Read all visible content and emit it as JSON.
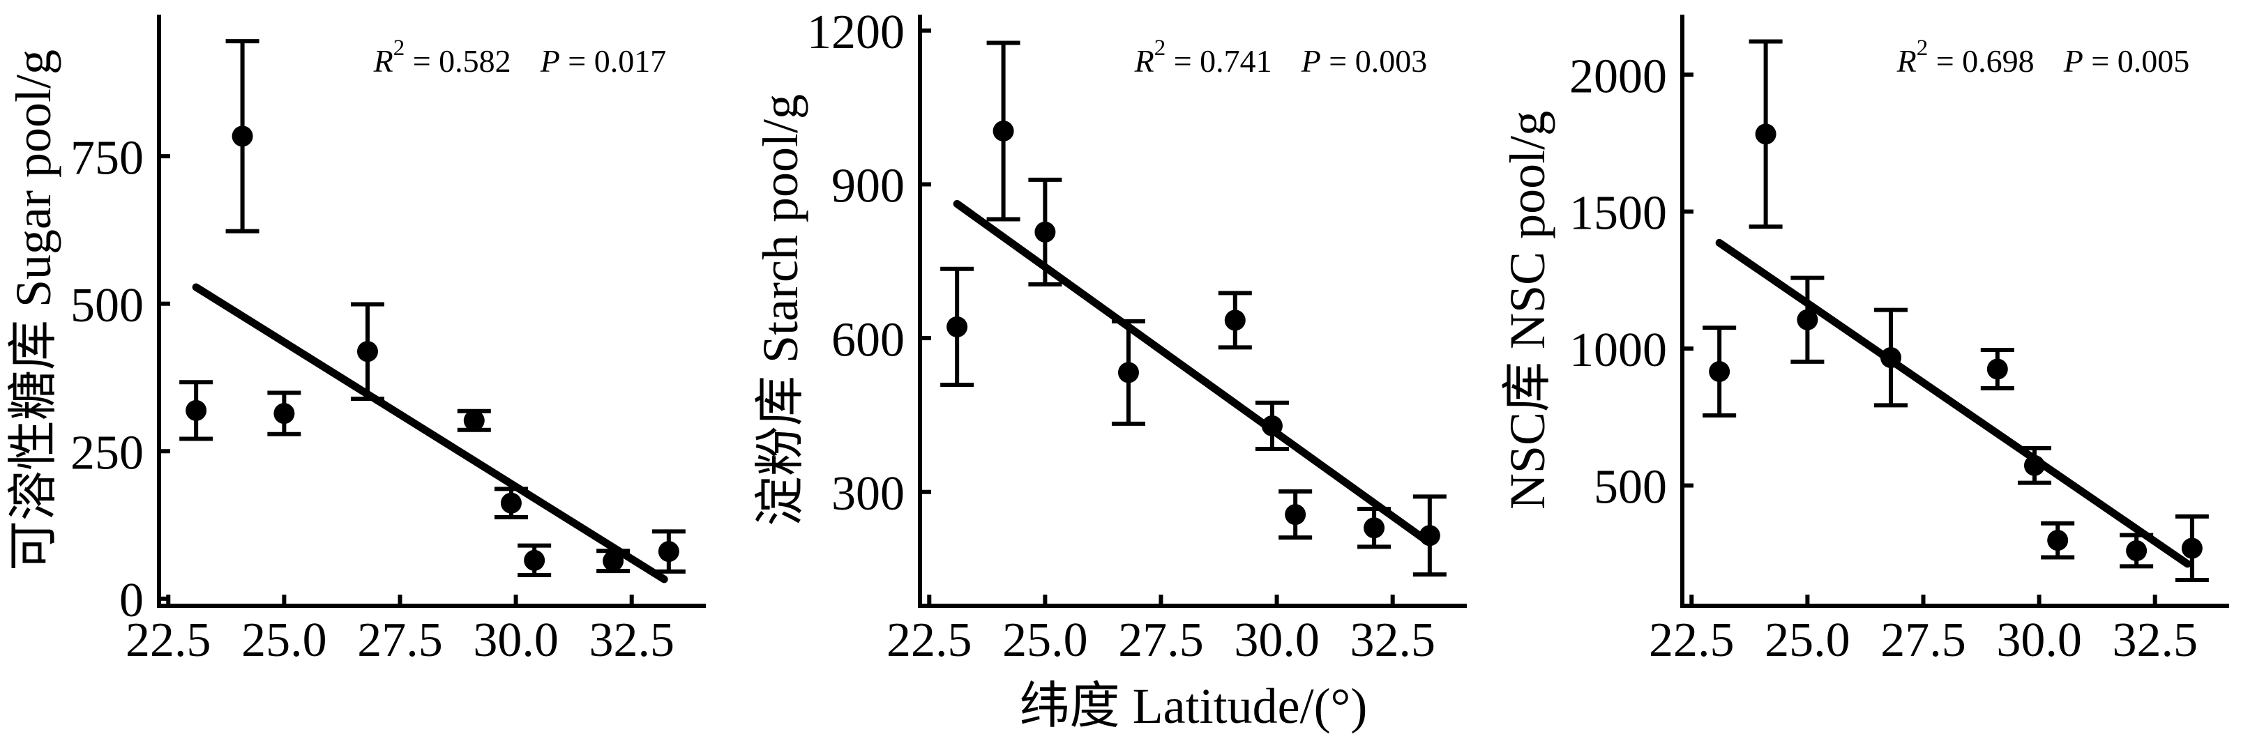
{
  "figure": {
    "background": "#ffffff",
    "ink_color": "#000000",
    "shared_xlabel": "纬度  Latitude/(°)",
    "xtick_labels": [
      "22.5",
      "25.0",
      "27.5",
      "30.0",
      "32.5"
    ]
  },
  "chart_data": [
    {
      "type": "scatter",
      "title": "",
      "ylabel": "可溶性糖库  Sugar pool/g",
      "xlabel": "",
      "legend": "none",
      "grid": "off",
      "annotation": {
        "r_label": "R",
        "r_exponent": "2",
        "r_text": " = 0.582",
        "p_label": "P",
        "p_text": " = 0.017"
      },
      "x": [
        23.1,
        24.1,
        25.0,
        26.8,
        29.1,
        29.9,
        30.4,
        32.1,
        33.3
      ],
      "y": [
        319,
        784,
        314,
        419,
        302,
        162,
        65,
        64,
        80
      ],
      "yerr": [
        48,
        161,
        35,
        80,
        16,
        24,
        25,
        17,
        34
      ],
      "fit_line": {
        "x1": 23.1,
        "y1": 528,
        "x2": 33.2,
        "y2": 33
      },
      "xlim": [
        22.3,
        34.1
      ],
      "ylim": [
        -12,
        990
      ],
      "xticks": [
        22.5,
        25.0,
        27.5,
        30.0,
        32.5
      ],
      "xtick_labels": [
        "22.5",
        "25.0",
        "27.5",
        "30.0",
        "32.5"
      ],
      "yticks": [
        0,
        250,
        500,
        750
      ],
      "ytick_labels": [
        "0",
        "250",
        "500",
        "750"
      ]
    },
    {
      "type": "scatter",
      "title": "",
      "ylabel": "淀粉库  Starch pool/g",
      "xlabel": "纬度  Latitude/(°)",
      "legend": "none",
      "grid": "off",
      "annotation": {
        "r_label": "R",
        "r_exponent": "2",
        "r_text": " = 0.741",
        "p_label": "P",
        "p_text": " = 0.003"
      },
      "x": [
        23.1,
        24.1,
        25.0,
        26.8,
        29.1,
        29.9,
        30.4,
        32.1,
        33.3
      ],
      "y": [
        622,
        1004,
        807,
        533,
        635,
        429,
        256,
        230,
        215
      ],
      "yerr": [
        113,
        172,
        102,
        100,
        53,
        45,
        45,
        37,
        76
      ],
      "fit_line": {
        "x1": 23.1,
        "y1": 862,
        "x2": 33.2,
        "y2": 207
      },
      "xlim": [
        22.3,
        34.1
      ],
      "ylim": [
        78,
        1231
      ],
      "xticks": [
        22.5,
        25.0,
        27.5,
        30.0,
        32.5
      ],
      "xtick_labels": [
        "22.5",
        "25.0",
        "27.5",
        "30.0",
        "32.5"
      ],
      "yticks": [
        300,
        600,
        900,
        1200
      ],
      "ytick_labels": [
        "300",
        "600",
        "900",
        "1200"
      ]
    },
    {
      "type": "scatter",
      "title": "",
      "ylabel": "NSC库  NSC pool/g",
      "xlabel": "",
      "legend": "none",
      "grid": "off",
      "annotation": {
        "r_label": "R",
        "r_exponent": "2",
        "r_text": " = 0.698",
        "p_label": "P",
        "p_text": " = 0.005"
      },
      "x": [
        23.1,
        24.1,
        25.0,
        26.8,
        29.1,
        29.9,
        30.4,
        32.1,
        33.3
      ],
      "y": [
        916,
        1783,
        1105,
        967,
        925,
        573,
        300,
        262,
        271
      ],
      "yerr": [
        160,
        338,
        153,
        174,
        70,
        63,
        62,
        57,
        116
      ],
      "fit_line": {
        "x1": 23.1,
        "y1": 1386,
        "x2": 33.2,
        "y2": 214
      },
      "xlim": [
        22.3,
        34.1
      ],
      "ylim": [
        61,
        2219
      ],
      "xticks": [
        22.5,
        25.0,
        27.5,
        30.0,
        32.5
      ],
      "xtick_labels": [
        "22.5",
        "25.0",
        "27.5",
        "30.0",
        "32.5"
      ],
      "yticks": [
        500,
        1000,
        1500,
        2000
      ],
      "ytick_labels": [
        "500",
        "1000",
        "1500",
        "2000"
      ]
    }
  ]
}
